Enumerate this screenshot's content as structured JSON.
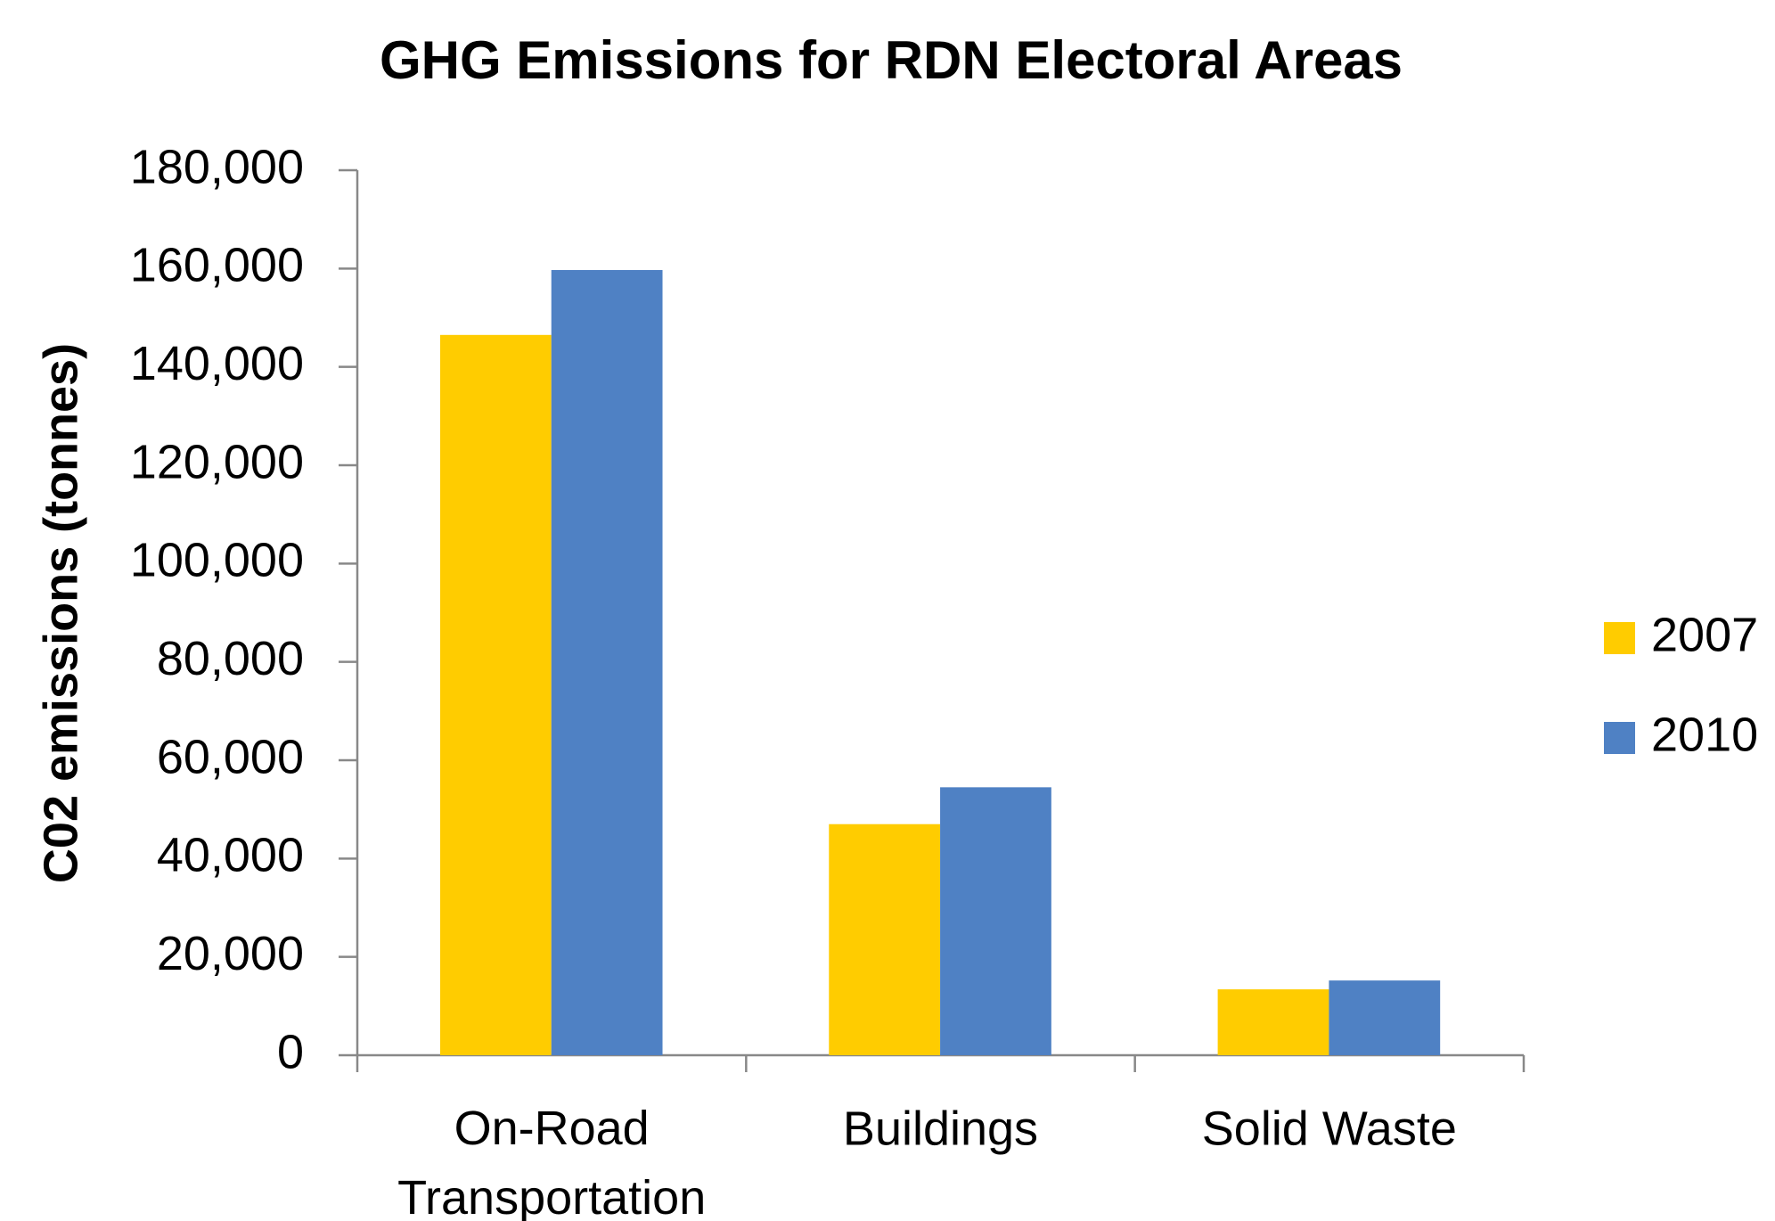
{
  "chart_data": {
    "type": "bar",
    "title": "GHG Emissions for RDN Electoral Areas",
    "y_label": "C02 emissions (tonnes)",
    "categories": [
      "On-Road Transportation",
      "Buildings",
      "Solid Waste"
    ],
    "series": [
      {
        "name": "2007",
        "color": "#ffcc00",
        "values": [
          146500,
          47000,
          13400
        ]
      },
      {
        "name": "2010",
        "color": "#4f81c4",
        "values": [
          159700,
          54500,
          15200
        ]
      }
    ],
    "ylim": [
      0,
      180000
    ],
    "yticks": [
      0,
      {
        "value": 20000,
        "label": "20,000"
      },
      {
        "value": 40000,
        "label": "40,000"
      },
      {
        "value": 60000,
        "label": "60,000"
      },
      {
        "value": 80000,
        "label": "80,000"
      },
      {
        "value": 100000,
        "label": "100,000"
      },
      {
        "value": 120000,
        "label": "120,000"
      },
      {
        "value": 140000,
        "label": "140,000"
      },
      {
        "value": 160000,
        "label": "160,000"
      },
      {
        "value": 180000,
        "label": "180,000"
      }
    ],
    "grid": false,
    "legend": "right"
  }
}
